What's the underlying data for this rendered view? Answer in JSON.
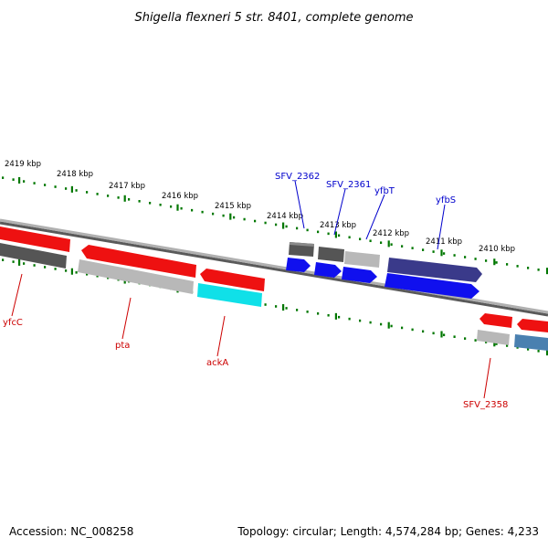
{
  "title": "Shigella flexneri 5 str. 8401, complete genome",
  "footer": {
    "accession": "Accession: NC_008258",
    "topology": "Topology: circular; Length: 4,574,284 bp; Genes: 4,233"
  },
  "scale_ticks": [
    "2419 kbp",
    "2418 kbp",
    "2417 kbp",
    "2416 kbp",
    "2415 kbp",
    "2414 kbp",
    "2413 kbp",
    "2412 kbp",
    "2411 kbp",
    "2410 kbp"
  ],
  "gene_labels": [
    {
      "name": "SFV_2362",
      "strand": "forward",
      "color": "#0000cc"
    },
    {
      "name": "SFV_2361",
      "strand": "forward",
      "color": "#0000cc"
    },
    {
      "name": "yfbT",
      "strand": "forward",
      "color": "#0000cc"
    },
    {
      "name": "yfbS",
      "strand": "forward",
      "color": "#0000cc"
    },
    {
      "name": "yfcC",
      "strand": "reverse",
      "color": "#cc0000"
    },
    {
      "name": "pta",
      "strand": "reverse",
      "color": "#cc0000"
    },
    {
      "name": "ackA",
      "strand": "reverse",
      "color": "#cc0000"
    },
    {
      "name": "SFV_2358",
      "strand": "reverse",
      "color": "#cc0000"
    }
  ],
  "colors": {
    "red_gene": "#ee1111",
    "blue_gene": "#1010ee",
    "dark_blue_gene": "#3a3a8a",
    "cyan_gene": "#10e0e8",
    "steel_blue_gene": "#4a80b0",
    "dark_gray_gene": "#555555",
    "light_gray_gene": "#b8b8b8",
    "backbone": "#888888",
    "tick": "#007700"
  }
}
